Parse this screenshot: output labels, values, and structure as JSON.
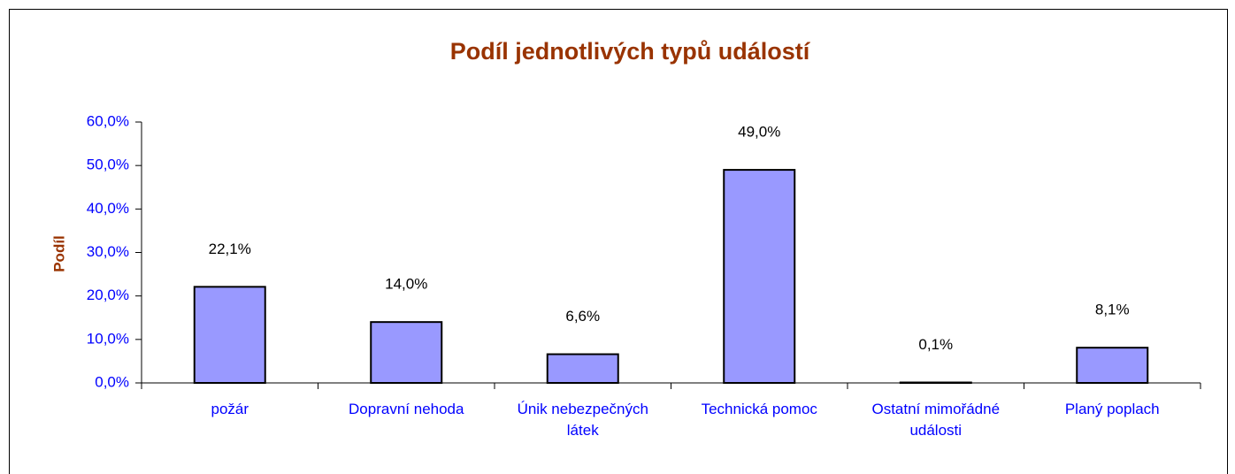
{
  "chart_data": {
    "type": "bar",
    "title": "Podíl jednotlivých typů událostí",
    "ylabel": "Podíl",
    "categories": [
      "požár",
      "Dopravní nehoda",
      "Únik nebezpečných látek",
      "Technická pomoc",
      "Ostatní mimořádné události",
      "Planý poplach"
    ],
    "values": [
      22.1,
      14.0,
      6.6,
      49.0,
      0.1,
      8.1
    ],
    "value_labels": [
      "22,1%",
      "14,0%",
      "6,6%",
      "49,0%",
      "0,1%",
      "8,1%"
    ],
    "color": "#9999ff",
    "ylim": [
      0,
      60
    ],
    "yticks": [
      {
        "value": 0,
        "label": "0,0%"
      },
      {
        "value": 10,
        "label": "10,0%"
      },
      {
        "value": 20,
        "label": "20,0%"
      },
      {
        "value": 30,
        "label": "30,0%"
      },
      {
        "value": 40,
        "label": "40,0%"
      },
      {
        "value": 50,
        "label": "50,0%"
      },
      {
        "value": 60,
        "label": "60,0%"
      }
    ],
    "grid": false
  }
}
